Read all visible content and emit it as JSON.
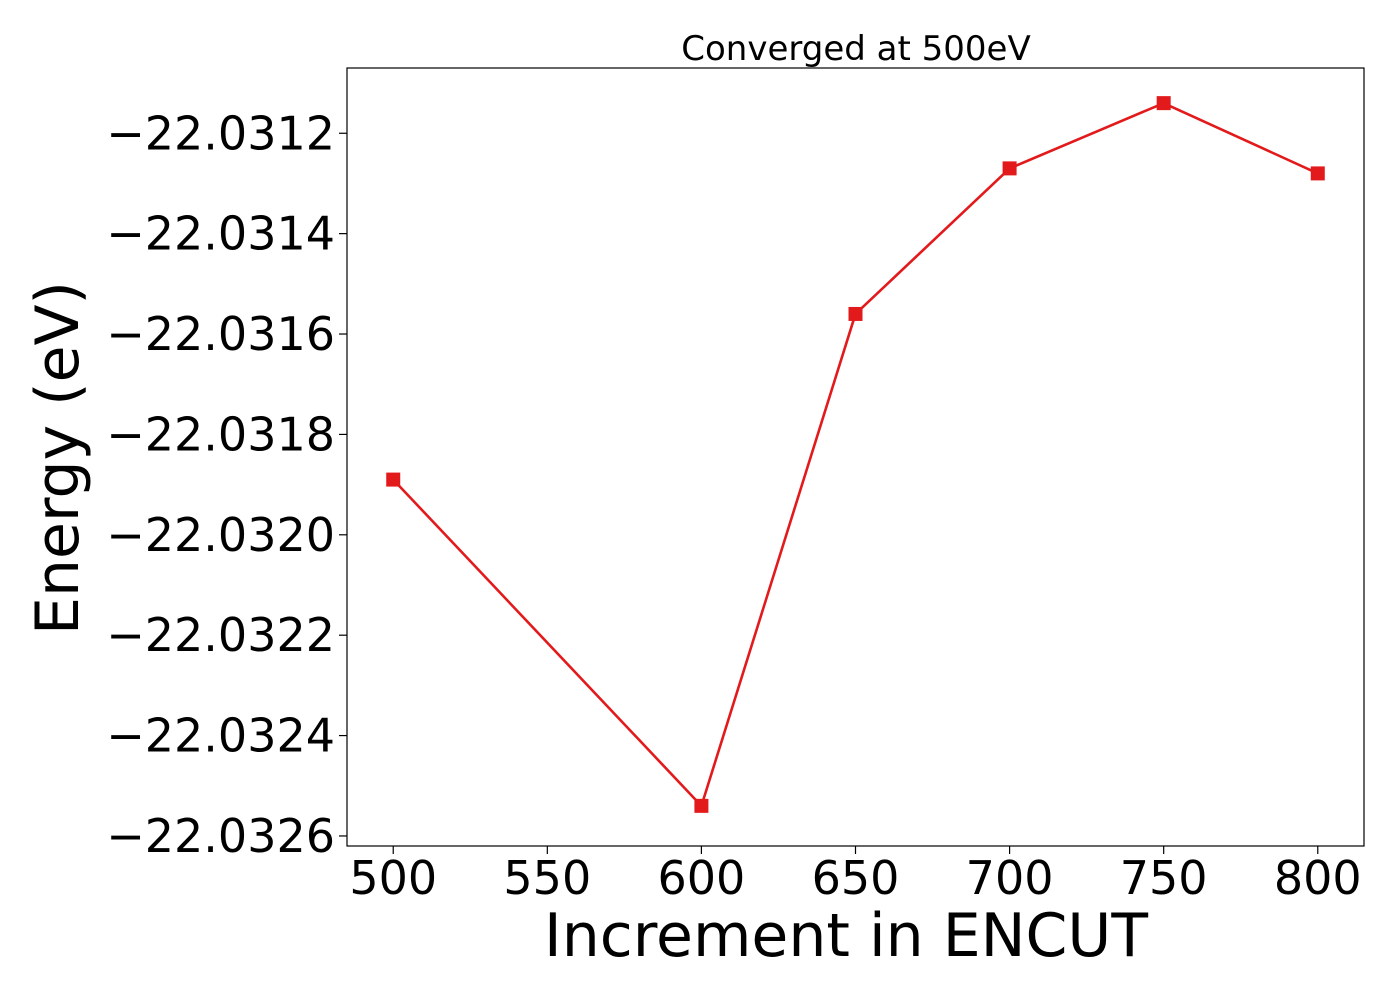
{
  "chart_data": {
    "type": "line",
    "title": "Converged at 500eV",
    "xlabel": "Increment in ENCUT",
    "ylabel": "Energy (eV)",
    "x": [
      500,
      600,
      650,
      700,
      750,
      800
    ],
    "series": [
      {
        "values": [
          -22.03189,
          -22.03254,
          -22.03156,
          -22.03127,
          -22.03114,
          -22.03128
        ],
        "color": "#e31a1c",
        "marker": "square"
      }
    ],
    "xlim": [
      485,
      815
    ],
    "ylim": [
      -22.03262,
      -22.03107
    ],
    "xticks": [
      500,
      550,
      600,
      650,
      700,
      750,
      800
    ],
    "xtick_labels": [
      "500",
      "550",
      "600",
      "650",
      "700",
      "750",
      "800"
    ],
    "yticks": [
      -22.0312,
      -22.0314,
      -22.0316,
      -22.0318,
      -22.032,
      -22.0322,
      -22.0324,
      -22.0326
    ],
    "ytick_labels": [
      "−22.0312",
      "−22.0314",
      "−22.0316",
      "−22.0318",
      "−22.0320",
      "−22.0322",
      "−22.0324",
      "−22.0326"
    ],
    "grid": false,
    "legend": "none"
  }
}
